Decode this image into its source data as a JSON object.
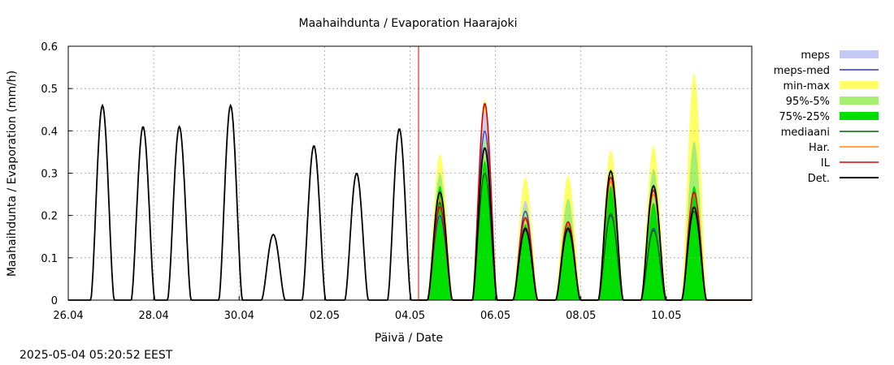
{
  "chart_data": {
    "type": "line",
    "title": "Maahaihdunta / Evaporation  Haarajoki",
    "xlabel": "Päivä / Date",
    "ylabel": "Maahaihdunta / Evaporation (mm/h)",
    "ylim": [
      0,
      0.6
    ],
    "xlim_days": [
      0,
      16
    ],
    "y_ticks": [
      "0",
      "0.1",
      "0.2",
      "0.3",
      "0.4",
      "0.5",
      "0.6"
    ],
    "x_ticks": [
      {
        "day": 0,
        "label": "26.04"
      },
      {
        "day": 2,
        "label": "28.04"
      },
      {
        "day": 4,
        "label": "30.04"
      },
      {
        "day": 6,
        "label": "02.05"
      },
      {
        "day": 8,
        "label": "04.05"
      },
      {
        "day": 10,
        "label": "06.05"
      },
      {
        "day": 12,
        "label": "08.05"
      },
      {
        "day": 14,
        "label": "10.05"
      }
    ],
    "grid": true,
    "now_marker_day": 8.2,
    "legend": [
      {
        "label": "meps",
        "style": "band",
        "color": "#c4c8f4"
      },
      {
        "label": "meps-med",
        "style": "line",
        "color": "#3030c0"
      },
      {
        "label": "min-max",
        "style": "band",
        "color": "#ffff66"
      },
      {
        "label": "95%-5%",
        "style": "band",
        "color": "#a4f070"
      },
      {
        "label": "75%-25%",
        "style": "band",
        "color": "#00e000"
      },
      {
        "label": "mediaani",
        "style": "line",
        "color": "#006400"
      },
      {
        "label": "Har.",
        "style": "line",
        "color": "#ff8800"
      },
      {
        "label": "IL",
        "style": "line",
        "color": "#e00000"
      },
      {
        "label": "Det.",
        "style": "line",
        "color": "#000000"
      }
    ],
    "observed_daily_peaks": [
      {
        "day": 0.8,
        "value": 0.46
      },
      {
        "day": 1.75,
        "value": 0.41
      },
      {
        "day": 2.6,
        "value": 0.41
      },
      {
        "day": 3.8,
        "value": 0.46
      },
      {
        "day": 4.8,
        "value": 0.155
      },
      {
        "day": 5.75,
        "value": 0.365
      },
      {
        "day": 6.75,
        "value": 0.3
      },
      {
        "day": 7.75,
        "value": 0.405
      }
    ],
    "forecast_daily": [
      {
        "day": 8.7,
        "median": 0.23,
        "det": 0.255,
        "il": 0.22,
        "har": 0.24,
        "meps_med": 0.2,
        "p75": 0.27,
        "p95": 0.3,
        "max": 0.345
      },
      {
        "day": 9.75,
        "median": 0.3,
        "det": 0.36,
        "il": 0.465,
        "har": 0.46,
        "meps_med": 0.4,
        "p75": 0.33,
        "p95": 0.38,
        "max": 0.475
      },
      {
        "day": 10.7,
        "median": 0.165,
        "det": 0.17,
        "il": 0.195,
        "har": 0.19,
        "meps_med": 0.21,
        "p75": 0.18,
        "p95": 0.22,
        "max": 0.29
      },
      {
        "day": 11.7,
        "median": 0.165,
        "det": 0.17,
        "il": 0.185,
        "har": 0.18,
        "meps_med": 0.17,
        "p75": 0.18,
        "p95": 0.24,
        "max": 0.295
      },
      {
        "day": 12.7,
        "median": 0.205,
        "det": 0.305,
        "il": 0.29,
        "har": 0.28,
        "meps_med": 0.2,
        "p75": 0.27,
        "p95": 0.31,
        "max": 0.355
      },
      {
        "day": 13.7,
        "median": 0.165,
        "det": 0.27,
        "il": 0.26,
        "har": 0.25,
        "meps_med": 0.17,
        "p75": 0.23,
        "p95": 0.31,
        "max": 0.365
      },
      {
        "day": 14.65,
        "median": 0.21,
        "det": 0.22,
        "il": 0.255,
        "har": 0.25,
        "meps_med": 0.21,
        "p75": 0.27,
        "p95": 0.375,
        "max": 0.535
      }
    ]
  },
  "footer": {
    "timestamp": "2025-05-04  05:20:52 EEST"
  }
}
